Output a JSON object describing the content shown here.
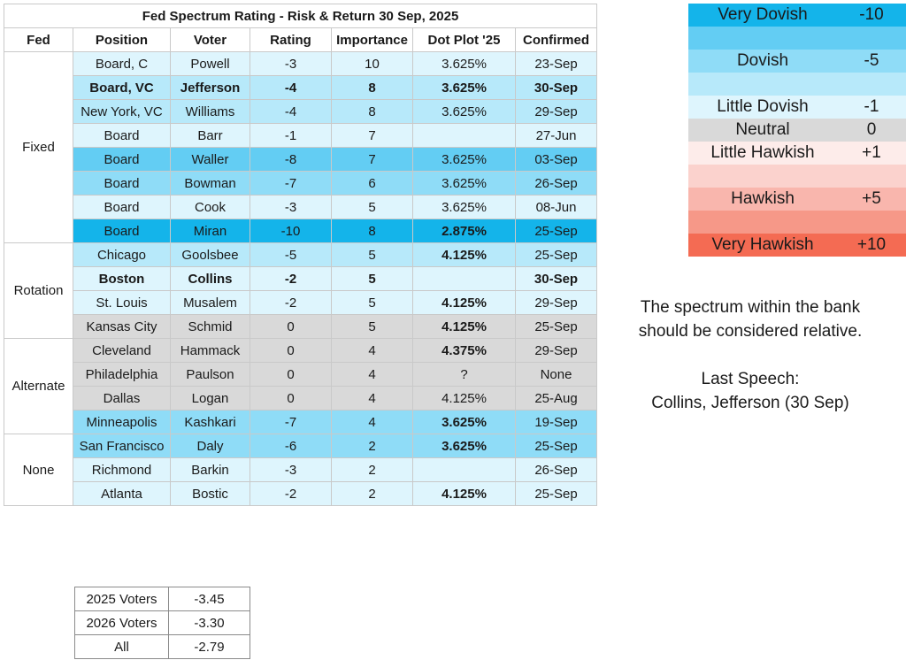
{
  "title": "Fed Spectrum Rating - Risk & Return 30 Sep, 2025",
  "headers": [
    "Fed",
    "Position",
    "Voter",
    "Rating",
    "Importance",
    "Dot Plot '25",
    "Confirmed"
  ],
  "groups": [
    {
      "name": "Fixed",
      "rows": [
        {
          "position": "Board, C",
          "voter": "Powell",
          "rating": "-3",
          "importance": "10",
          "dot": "3.625%",
          "confirmed": "23-Sep",
          "rating_value": -3,
          "bold": false,
          "dot_bold": false
        },
        {
          "position": "Board, VC",
          "voter": "Jefferson",
          "rating": "-4",
          "importance": "8",
          "dot": "3.625%",
          "confirmed": "30-Sep",
          "rating_value": -4,
          "bold": true,
          "dot_bold": false
        },
        {
          "position": "New York, VC",
          "voter": "Williams",
          "rating": "-4",
          "importance": "8",
          "dot": "3.625%",
          "confirmed": "29-Sep",
          "rating_value": -4,
          "bold": false,
          "dot_bold": false
        },
        {
          "position": "Board",
          "voter": "Barr",
          "rating": "-1",
          "importance": "7",
          "dot": "",
          "confirmed": "27-Jun",
          "rating_value": -1,
          "bold": false,
          "dot_bold": false
        },
        {
          "position": "Board",
          "voter": "Waller",
          "rating": "-8",
          "importance": "7",
          "dot": "3.625%",
          "confirmed": "03-Sep",
          "rating_value": -8,
          "bold": false,
          "dot_bold": false
        },
        {
          "position": "Board",
          "voter": "Bowman",
          "rating": "-7",
          "importance": "6",
          "dot": "3.625%",
          "confirmed": "26-Sep",
          "rating_value": -7,
          "bold": false,
          "dot_bold": false
        },
        {
          "position": "Board",
          "voter": "Cook",
          "rating": "-3",
          "importance": "5",
          "dot": "3.625%",
          "confirmed": "08-Jun",
          "rating_value": -3,
          "bold": false,
          "dot_bold": false
        },
        {
          "position": "Board",
          "voter": "Miran",
          "rating": "-10",
          "importance": "8",
          "dot": "2.875%",
          "confirmed": "25-Sep",
          "rating_value": -10,
          "bold": false,
          "dot_bold": true
        }
      ]
    },
    {
      "name": "Rotation",
      "rows": [
        {
          "position": "Chicago",
          "voter": "Goolsbee",
          "rating": "-5",
          "importance": "5",
          "dot": "4.125%",
          "confirmed": "25-Sep",
          "rating_value": -5,
          "bold": false,
          "dot_bold": true
        },
        {
          "position": "Boston",
          "voter": "Collins",
          "rating": "-2",
          "importance": "5",
          "dot": "",
          "confirmed": "30-Sep",
          "rating_value": -2,
          "bold": true,
          "dot_bold": false
        },
        {
          "position": "St. Louis",
          "voter": "Musalem",
          "rating": "-2",
          "importance": "5",
          "dot": "4.125%",
          "confirmed": "29-Sep",
          "rating_value": -2,
          "bold": false,
          "dot_bold": true
        },
        {
          "position": "Kansas City",
          "voter": "Schmid",
          "rating": "0",
          "importance": "5",
          "dot": "4.125%",
          "confirmed": "25-Sep",
          "rating_value": 0,
          "bold": false,
          "dot_bold": true
        }
      ]
    },
    {
      "name": "Alternate",
      "rows": [
        {
          "position": "Cleveland",
          "voter": "Hammack",
          "rating": "0",
          "importance": "4",
          "dot": "4.375%",
          "confirmed": "29-Sep",
          "rating_value": 0,
          "bold": false,
          "dot_bold": true
        },
        {
          "position": "Philadelphia",
          "voter": "Paulson",
          "rating": "0",
          "importance": "4",
          "dot": "?",
          "confirmed": "None",
          "rating_value": 0,
          "bold": false,
          "dot_bold": false
        },
        {
          "position": "Dallas",
          "voter": "Logan",
          "rating": "0",
          "importance": "4",
          "dot": "4.125%",
          "confirmed": "25-Aug",
          "rating_value": 0,
          "bold": false,
          "dot_bold": false
        },
        {
          "position": "Minneapolis",
          "voter": "Kashkari",
          "rating": "-7",
          "importance": "4",
          "dot": "3.625%",
          "confirmed": "19-Sep",
          "rating_value": -7,
          "bold": false,
          "dot_bold": true
        }
      ]
    },
    {
      "name": "None",
      "rows": [
        {
          "position": "San Francisco",
          "voter": "Daly",
          "rating": "-6",
          "importance": "2",
          "dot": "3.625%",
          "confirmed": "25-Sep",
          "rating_value": -6,
          "bold": false,
          "dot_bold": true
        },
        {
          "position": "Richmond",
          "voter": "Barkin",
          "rating": "-3",
          "importance": "2",
          "dot": "",
          "confirmed": "26-Sep",
          "rating_value": -3,
          "bold": false,
          "dot_bold": false
        },
        {
          "position": "Atlanta",
          "voter": "Bostic",
          "rating": "-2",
          "importance": "2",
          "dot": "4.125%",
          "confirmed": "25-Sep",
          "rating_value": -2,
          "bold": false,
          "dot_bold": true
        }
      ]
    }
  ],
  "legend": [
    {
      "label": "Very Dovish",
      "value": "-10",
      "color": "#14b4ea"
    },
    {
      "label": "",
      "value": "",
      "color": "#63cdf3"
    },
    {
      "label": "Dovish",
      "value": "-5",
      "color": "#8fdcf7"
    },
    {
      "label": "",
      "value": "",
      "color": "#b7e9fa"
    },
    {
      "label": "Little Dovish",
      "value": "-1",
      "color": "#def5fd"
    },
    {
      "label": "Neutral",
      "value": "0",
      "color": "#d9d9d9"
    },
    {
      "label": "Little Hawkish",
      "value": "+1",
      "color": "#fdecea"
    },
    {
      "label": "",
      "value": "",
      "color": "#fbd2cd"
    },
    {
      "label": "Hawkish",
      "value": "+5",
      "color": "#f9b6ad"
    },
    {
      "label": "",
      "value": "",
      "color": "#f69888"
    },
    {
      "label": "Very Hawkish",
      "value": "+10",
      "color": "#f46b53"
    }
  ],
  "notes": {
    "spectrum": [
      "The spectrum within the bank",
      "should be considered relative."
    ],
    "last_speech_label": "Last Speech:",
    "last_speech_value": "Collins, Jefferson (30 Sep)"
  },
  "summary": [
    {
      "label": "2025 Voters",
      "value": "-3.45"
    },
    {
      "label": "2026 Voters",
      "value": "-3.30"
    },
    {
      "label": "All",
      "value": "-2.79"
    }
  ],
  "colors": {
    "neutral": "#d9d9d9",
    "dovish_1_3": "#def5fd",
    "dovish_4_5": "#b7e9fa",
    "dovish_6_7": "#8fdcf7",
    "dovish_8_9": "#63cdf3",
    "dovish_10": "#14b4ea",
    "header_rule": "#5a6bb0"
  }
}
